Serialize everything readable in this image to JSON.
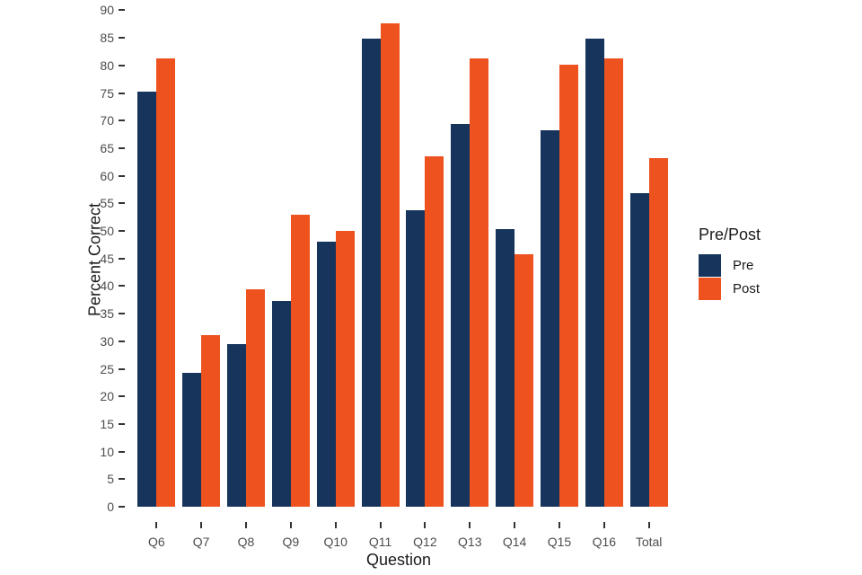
{
  "chart_data": {
    "type": "bar",
    "title": "",
    "xlabel": "Question",
    "ylabel": "Percent Correct",
    "categories": [
      "Q6",
      "Q7",
      "Q8",
      "Q9",
      "Q10",
      "Q11",
      "Q12",
      "Q13",
      "Q14",
      "Q15",
      "Q16",
      "Total"
    ],
    "series": [
      {
        "name": "Pre",
        "color": "#17345c",
        "values": [
          75.3,
          24.3,
          29.5,
          37.3,
          48.0,
          84.8,
          53.7,
          69.4,
          50.4,
          68.3,
          84.8,
          56.9
        ]
      },
      {
        "name": "Post",
        "color": "#ed521f",
        "values": [
          81.3,
          31.1,
          39.4,
          53.0,
          50.0,
          87.6,
          63.5,
          81.3,
          45.8,
          80.1,
          81.3,
          63.2
        ]
      }
    ],
    "ylim": [
      0,
      90
    ],
    "yticks": [
      0,
      5,
      10,
      15,
      20,
      25,
      30,
      35,
      40,
      45,
      50,
      55,
      60,
      65,
      70,
      75,
      80,
      85,
      90
    ],
    "legend_title": "Pre/Post",
    "legend_position": "right",
    "grid": false,
    "axis_lines": false
  }
}
